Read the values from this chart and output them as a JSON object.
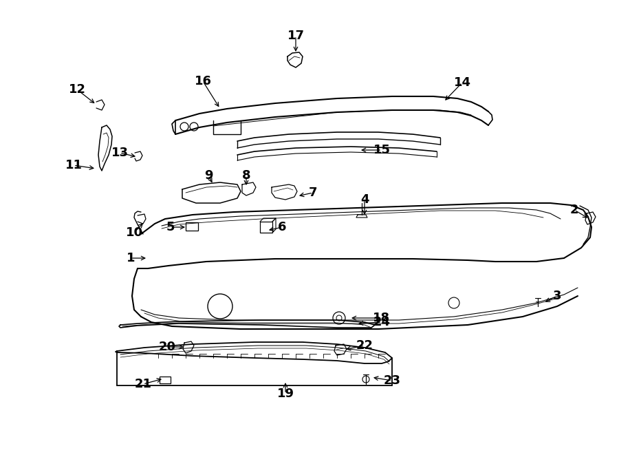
{
  "bg_color": "#ffffff",
  "line_color": "#000000",
  "fig_width": 9.0,
  "fig_height": 6.61,
  "dpi": 100,
  "parts_labels": [
    [
      "1",
      190,
      375,
      215,
      375
    ],
    [
      "2",
      835,
      305,
      857,
      318
    ],
    [
      "3",
      810,
      430,
      790,
      440
    ],
    [
      "4",
      530,
      290,
      530,
      315
    ],
    [
      "5",
      248,
      330,
      272,
      330
    ],
    [
      "6",
      410,
      330,
      388,
      335
    ],
    [
      "7",
      455,
      280,
      432,
      285
    ],
    [
      "8",
      358,
      255,
      358,
      272
    ],
    [
      "9",
      303,
      255,
      310,
      268
    ],
    [
      "10",
      195,
      338,
      210,
      322
    ],
    [
      "11",
      107,
      240,
      140,
      245
    ],
    [
      "12",
      112,
      130,
      140,
      152
    ],
    [
      "13",
      174,
      222,
      200,
      228
    ],
    [
      "14",
      672,
      120,
      645,
      148
    ],
    [
      "15",
      555,
      218,
      522,
      218
    ],
    [
      "16",
      295,
      118,
      320,
      158
    ],
    [
      "17",
      430,
      52,
      430,
      78
    ],
    [
      "18",
      555,
      462,
      508,
      462
    ],
    [
      "19",
      415,
      572,
      415,
      553
    ],
    [
      "20",
      243,
      504,
      270,
      504
    ],
    [
      "21",
      208,
      558,
      238,
      550
    ],
    [
      "22",
      530,
      502,
      500,
      508
    ],
    [
      "23",
      570,
      553,
      540,
      548
    ],
    [
      "24",
      555,
      468,
      518,
      470
    ]
  ]
}
